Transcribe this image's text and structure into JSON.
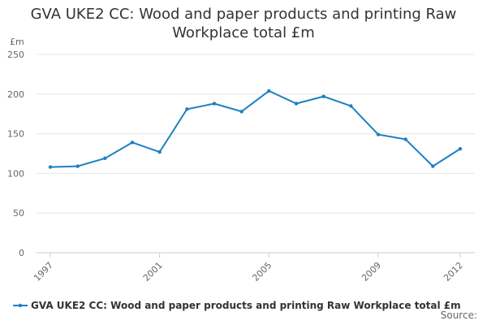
{
  "chart_data": {
    "type": "line",
    "title": "GVA UKE2 CC: Wood and paper products and printing Raw Workplace total £m",
    "y_label": "£m",
    "source": "Source:",
    "x": [
      1997,
      1998,
      1999,
      2000,
      2001,
      2002,
      2003,
      2004,
      2005,
      2006,
      2007,
      2008,
      2009,
      2010,
      2011,
      2012
    ],
    "series": [
      {
        "name": "GVA UKE2 CC: Wood and paper products and printing Raw Workplace total £m",
        "color": "#1f7fbf",
        "values": [
          108,
          109,
          119,
          139,
          127,
          181,
          188,
          178,
          204,
          188,
          197,
          185,
          149,
          143,
          109,
          131
        ]
      }
    ],
    "xlim": [
      1997,
      2012
    ],
    "xticks": [
      1997,
      2001,
      2005,
      2009,
      2012
    ],
    "ylim": [
      0,
      250
    ],
    "yticks": [
      0,
      50,
      100,
      150,
      200,
      250
    ],
    "grid": true
  }
}
